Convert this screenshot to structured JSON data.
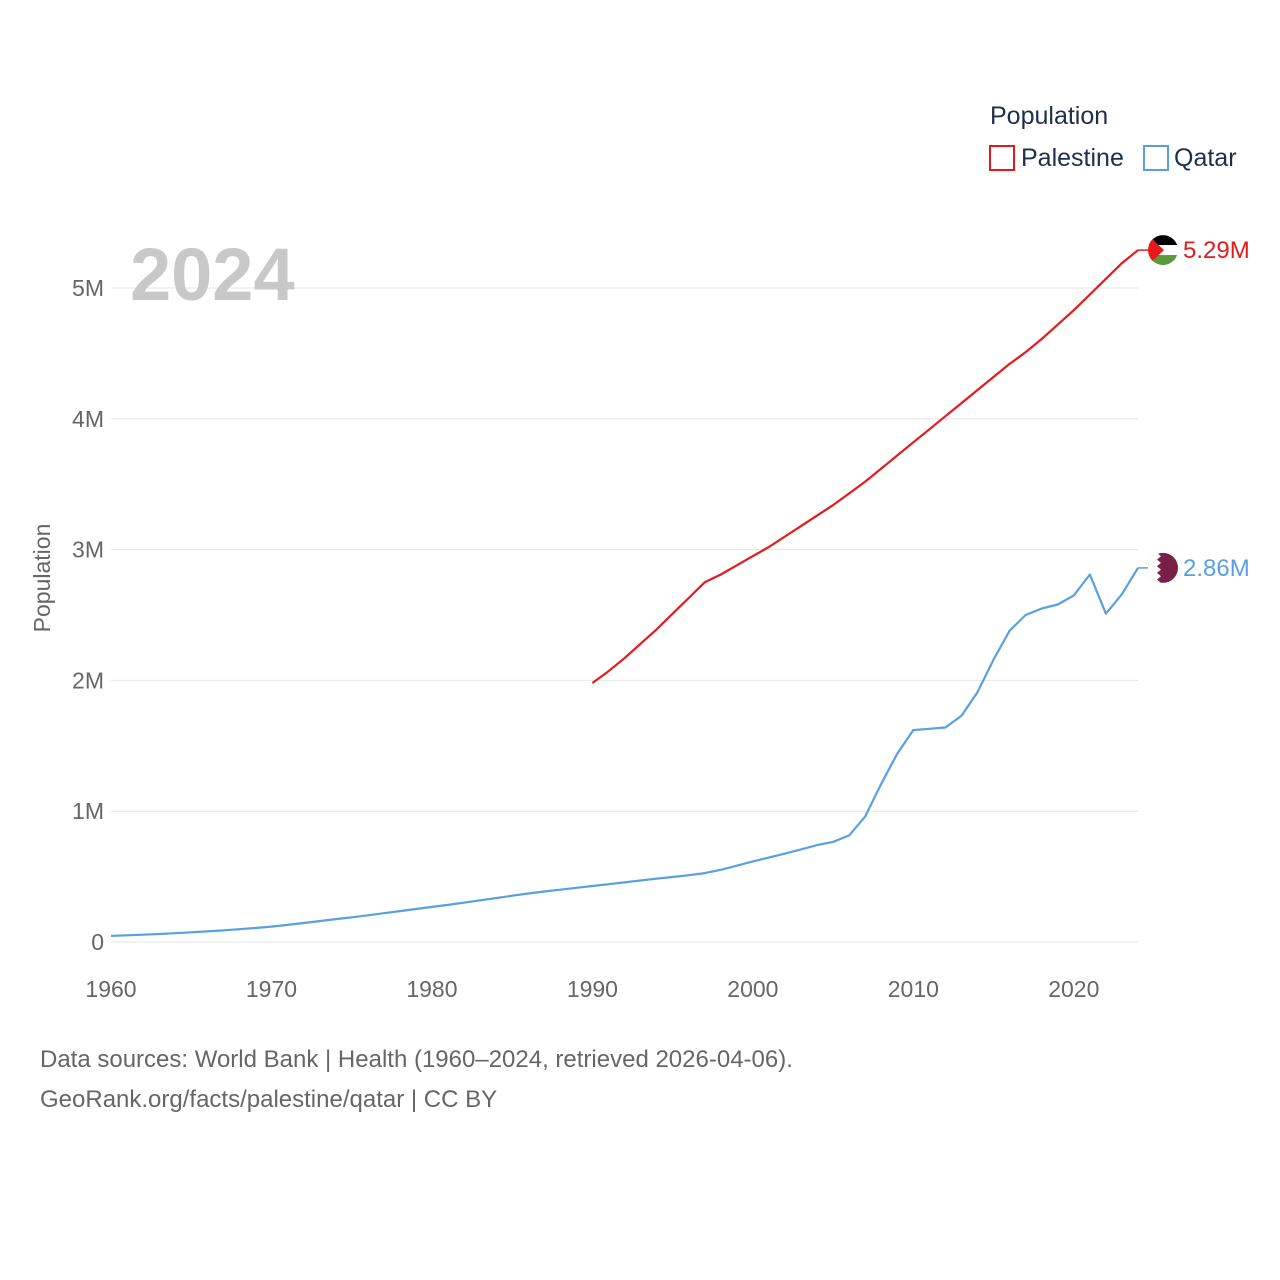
{
  "chart_data": {
    "type": "line",
    "title": "",
    "current_year_label": "2024",
    "xlabel": "",
    "ylabel": "Population",
    "xlim": [
      1960,
      2024
    ],
    "ylim": [
      0,
      5000000
    ],
    "x_ticks": [
      "1960",
      "1970",
      "1980",
      "1990",
      "2000",
      "2010",
      "2020"
    ],
    "y_ticks": [
      "0",
      "1M",
      "2M",
      "3M",
      "4M",
      "5M"
    ],
    "legend_title": "Population",
    "series": [
      {
        "name": "Palestine",
        "color": "#e41a1c",
        "end_label": "5.29M",
        "flag_icon": "palestine-flag-icon",
        "x": [
          1990,
          1991,
          1992,
          1993,
          1994,
          1995,
          1996,
          1997,
          1998,
          1999,
          2000,
          2001,
          2002,
          2003,
          2004,
          2005,
          2006,
          2007,
          2008,
          2009,
          2010,
          2011,
          2012,
          2013,
          2014,
          2015,
          2016,
          2017,
          2018,
          2019,
          2020,
          2021,
          2022,
          2023,
          2024
        ],
        "values": [
          1980000,
          2070000,
          2170000,
          2280000,
          2390000,
          2510000,
          2630000,
          2750000,
          2810000,
          2880000,
          2950000,
          3020000,
          3100000,
          3180000,
          3260000,
          3340000,
          3430000,
          3520000,
          3620000,
          3720000,
          3820000,
          3920000,
          4020000,
          4120000,
          4220000,
          4320000,
          4420000,
          4510000,
          4610000,
          4720000,
          4830000,
          4950000,
          5070000,
          5190000,
          5290000
        ]
      },
      {
        "name": "Qatar",
        "color": "#5a9fe0",
        "end_label": "2.86M",
        "flag_icon": "qatar-flag-icon",
        "x": [
          1960,
          1961,
          1962,
          1963,
          1964,
          1965,
          1966,
          1967,
          1968,
          1969,
          1970,
          1971,
          1972,
          1973,
          1974,
          1975,
          1976,
          1977,
          1978,
          1979,
          1980,
          1981,
          1982,
          1983,
          1984,
          1985,
          1986,
          1987,
          1988,
          1989,
          1990,
          1991,
          1992,
          1993,
          1994,
          1995,
          1996,
          1997,
          1998,
          1999,
          2000,
          2001,
          2002,
          2003,
          2004,
          2005,
          2006,
          2007,
          2008,
          2009,
          2010,
          2011,
          2012,
          2013,
          2014,
          2015,
          2016,
          2017,
          2018,
          2019,
          2020,
          2021,
          2022,
          2023,
          2024
        ],
        "values": [
          47000,
          51000,
          56000,
          61000,
          67000,
          74000,
          81000,
          89000,
          98000,
          107000,
          118000,
          131000,
          145000,
          160000,
          175000,
          189000,
          204000,
          220000,
          236000,
          252000,
          268000,
          284000,
          301000,
          319000,
          336000,
          354000,
          371000,
          386000,
          400000,
          414000,
          428000,
          442000,
          456000,
          470000,
          484000,
          497000,
          511000,
          527000,
          552000,
          583000,
          616000,
          645000,
          676000,
          708000,
          741000,
          765000,
          815000,
          960000,
          1210000,
          1440000,
          1620000,
          1630000,
          1640000,
          1730000,
          1910000,
          2160000,
          2380000,
          2500000,
          2550000,
          2580000,
          2650000,
          2810000,
          2510000,
          2660000,
          2860000
        ]
      }
    ]
  },
  "source": {
    "line1": "Data sources: World Bank | Health (1960–2024, retrieved 2026-04-06).",
    "line2": "GeoRank.org/facts/palestine/qatar | CC BY"
  }
}
